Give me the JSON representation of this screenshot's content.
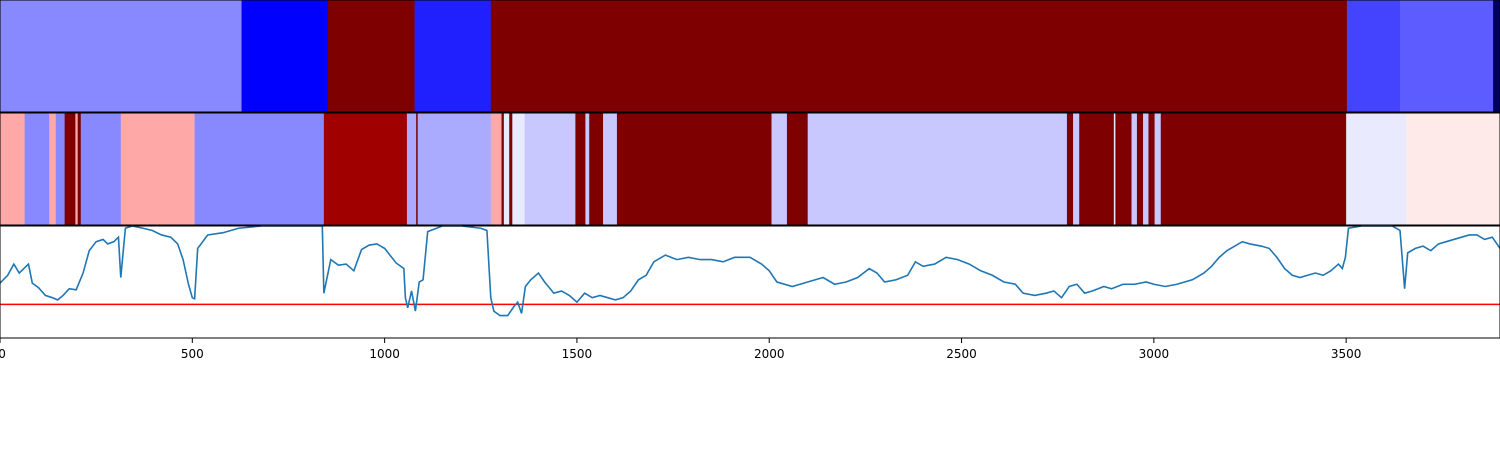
{
  "chart_data": {
    "type": "heatmap",
    "title": "",
    "xlabel": "",
    "ylabel": "",
    "xlim": [
      0,
      3900
    ],
    "xticks": [
      0,
      500,
      1000,
      1500,
      2000,
      2500,
      3000,
      3500
    ],
    "colors": {
      "dark_red": "#7f0000",
      "red": "#a00000",
      "pink": "#ffa8a8",
      "pale_pink": "#ffeaea",
      "blue": "#0000ff",
      "medium_blue": "#2020ff",
      "light_blue": "#8888ff",
      "periwinkle": "#aaaaff",
      "lavender": "#c8c8ff",
      "pale_lavender": "#eaeaff",
      "indigo": "#4444ff",
      "slate_blue": "#5c5cff",
      "navy": "#000060",
      "line": "#1f77b4",
      "threshold": "#ff0000"
    },
    "band1": [
      {
        "start": 0,
        "end": 628,
        "color": "light_blue"
      },
      {
        "start": 628,
        "end": 852,
        "color": "blue"
      },
      {
        "start": 852,
        "end": 1078,
        "color": "dark_red"
      },
      {
        "start": 1078,
        "end": 1276,
        "color": "medium_blue"
      },
      {
        "start": 1276,
        "end": 3502,
        "color": "dark_red"
      },
      {
        "start": 3502,
        "end": 3640,
        "color": "indigo"
      },
      {
        "start": 3640,
        "end": 3882,
        "color": "slate_blue"
      },
      {
        "start": 3882,
        "end": 3900,
        "color": "navy"
      }
    ],
    "band2": [
      {
        "start": 0,
        "end": 64,
        "color": "pink"
      },
      {
        "start": 64,
        "end": 128,
        "color": "light_blue"
      },
      {
        "start": 128,
        "end": 145,
        "color": "pink"
      },
      {
        "start": 145,
        "end": 168,
        "color": "light_blue"
      },
      {
        "start": 168,
        "end": 196,
        "color": "dark_red"
      },
      {
        "start": 196,
        "end": 202,
        "color": "pink"
      },
      {
        "start": 202,
        "end": 210,
        "color": "dark_red"
      },
      {
        "start": 210,
        "end": 314,
        "color": "light_blue"
      },
      {
        "start": 314,
        "end": 506,
        "color": "pink"
      },
      {
        "start": 506,
        "end": 842,
        "color": "light_blue"
      },
      {
        "start": 842,
        "end": 1058,
        "color": "red"
      },
      {
        "start": 1058,
        "end": 1082,
        "color": "periwinkle"
      },
      {
        "start": 1082,
        "end": 1086,
        "color": "dark_red"
      },
      {
        "start": 1086,
        "end": 1276,
        "color": "periwinkle"
      },
      {
        "start": 1276,
        "end": 1304,
        "color": "pink"
      },
      {
        "start": 1304,
        "end": 1310,
        "color": "dark_red"
      },
      {
        "start": 1310,
        "end": 1324,
        "color": "pale_lavender"
      },
      {
        "start": 1324,
        "end": 1332,
        "color": "dark_red"
      },
      {
        "start": 1332,
        "end": 1364,
        "color": "pale_lavender"
      },
      {
        "start": 1364,
        "end": 1496,
        "color": "lavender"
      },
      {
        "start": 1496,
        "end": 1522,
        "color": "dark_red"
      },
      {
        "start": 1522,
        "end": 1532,
        "color": "lavender"
      },
      {
        "start": 1532,
        "end": 1568,
        "color": "dark_red"
      },
      {
        "start": 1568,
        "end": 1604,
        "color": "lavender"
      },
      {
        "start": 1604,
        "end": 2006,
        "color": "dark_red"
      },
      {
        "start": 2006,
        "end": 2046,
        "color": "lavender"
      },
      {
        "start": 2046,
        "end": 2100,
        "color": "dark_red"
      },
      {
        "start": 2100,
        "end": 2774,
        "color": "lavender"
      },
      {
        "start": 2774,
        "end": 2790,
        "color": "dark_red"
      },
      {
        "start": 2790,
        "end": 2806,
        "color": "lavender"
      },
      {
        "start": 2806,
        "end": 2896,
        "color": "dark_red"
      },
      {
        "start": 2896,
        "end": 2900,
        "color": "pale_lavender"
      },
      {
        "start": 2900,
        "end": 2942,
        "color": "dark_red"
      },
      {
        "start": 2942,
        "end": 2956,
        "color": "lavender"
      },
      {
        "start": 2956,
        "end": 2972,
        "color": "dark_red"
      },
      {
        "start": 2972,
        "end": 2986,
        "color": "lavender"
      },
      {
        "start": 2986,
        "end": 3002,
        "color": "dark_red"
      },
      {
        "start": 3002,
        "end": 3018,
        "color": "lavender"
      },
      {
        "start": 3018,
        "end": 3500,
        "color": "dark_red"
      },
      {
        "start": 3500,
        "end": 3656,
        "color": "pale_lavender"
      },
      {
        "start": 3656,
        "end": 3900,
        "color": "pale_pink"
      }
    ],
    "line": {
      "ylim": [
        0,
        1
      ],
      "threshold": 0.3,
      "points": [
        [
          0,
          0.49
        ],
        [
          20,
          0.56
        ],
        [
          36,
          0.66
        ],
        [
          50,
          0.58
        ],
        [
          62,
          0.62
        ],
        [
          74,
          0.66
        ],
        [
          84,
          0.49
        ],
        [
          100,
          0.45
        ],
        [
          118,
          0.38
        ],
        [
          136,
          0.36
        ],
        [
          150,
          0.34
        ],
        [
          164,
          0.38
        ],
        [
          180,
          0.44
        ],
        [
          198,
          0.43
        ],
        [
          216,
          0.58
        ],
        [
          232,
          0.78
        ],
        [
          250,
          0.86
        ],
        [
          268,
          0.88
        ],
        [
          280,
          0.84
        ],
        [
          296,
          0.86
        ],
        [
          308,
          0.9
        ],
        [
          314,
          0.54
        ],
        [
          326,
          0.98
        ],
        [
          344,
          1.0
        ],
        [
          372,
          0.98
        ],
        [
          396,
          0.96
        ],
        [
          420,
          0.92
        ],
        [
          444,
          0.9
        ],
        [
          462,
          0.84
        ],
        [
          476,
          0.7
        ],
        [
          490,
          0.48
        ],
        [
          500,
          0.36
        ],
        [
          506,
          0.35
        ],
        [
          514,
          0.8
        ],
        [
          540,
          0.92
        ],
        [
          580,
          0.94
        ],
        [
          620,
          0.98
        ],
        [
          680,
          1.0
        ],
        [
          760,
          1.0
        ],
        [
          820,
          1.0
        ],
        [
          838,
          1.0
        ],
        [
          842,
          0.4
        ],
        [
          860,
          0.7
        ],
        [
          880,
          0.65
        ],
        [
          900,
          0.66
        ],
        [
          920,
          0.6
        ],
        [
          940,
          0.79
        ],
        [
          960,
          0.83
        ],
        [
          980,
          0.84
        ],
        [
          1000,
          0.8
        ],
        [
          1030,
          0.67
        ],
        [
          1050,
          0.62
        ],
        [
          1054,
          0.36
        ],
        [
          1060,
          0.27
        ],
        [
          1070,
          0.42
        ],
        [
          1080,
          0.24
        ],
        [
          1090,
          0.5
        ],
        [
          1100,
          0.52
        ],
        [
          1112,
          0.95
        ],
        [
          1150,
          1.0
        ],
        [
          1200,
          1.0
        ],
        [
          1250,
          0.98
        ],
        [
          1266,
          0.96
        ],
        [
          1276,
          0.36
        ],
        [
          1284,
          0.24
        ],
        [
          1300,
          0.2
        ],
        [
          1320,
          0.2
        ],
        [
          1336,
          0.28
        ],
        [
          1346,
          0.32
        ],
        [
          1356,
          0.22
        ],
        [
          1366,
          0.46
        ],
        [
          1380,
          0.52
        ],
        [
          1400,
          0.58
        ],
        [
          1416,
          0.5
        ],
        [
          1440,
          0.4
        ],
        [
          1460,
          0.42
        ],
        [
          1480,
          0.38
        ],
        [
          1500,
          0.32
        ],
        [
          1520,
          0.4
        ],
        [
          1540,
          0.36
        ],
        [
          1560,
          0.38
        ],
        [
          1580,
          0.36
        ],
        [
          1600,
          0.34
        ],
        [
          1620,
          0.36
        ],
        [
          1640,
          0.42
        ],
        [
          1660,
          0.52
        ],
        [
          1680,
          0.56
        ],
        [
          1700,
          0.68
        ],
        [
          1730,
          0.74
        ],
        [
          1760,
          0.7
        ],
        [
          1790,
          0.72
        ],
        [
          1820,
          0.7
        ],
        [
          1850,
          0.7
        ],
        [
          1880,
          0.68
        ],
        [
          1910,
          0.72
        ],
        [
          1950,
          0.72
        ],
        [
          1980,
          0.66
        ],
        [
          2000,
          0.6
        ],
        [
          2020,
          0.5
        ],
        [
          2060,
          0.46
        ],
        [
          2100,
          0.5
        ],
        [
          2140,
          0.54
        ],
        [
          2170,
          0.48
        ],
        [
          2200,
          0.5
        ],
        [
          2230,
          0.54
        ],
        [
          2260,
          0.62
        ],
        [
          2280,
          0.58
        ],
        [
          2300,
          0.5
        ],
        [
          2330,
          0.52
        ],
        [
          2360,
          0.56
        ],
        [
          2380,
          0.68
        ],
        [
          2400,
          0.64
        ],
        [
          2430,
          0.66
        ],
        [
          2460,
          0.72
        ],
        [
          2490,
          0.7
        ],
        [
          2520,
          0.66
        ],
        [
          2550,
          0.6
        ],
        [
          2580,
          0.56
        ],
        [
          2610,
          0.5
        ],
        [
          2640,
          0.48
        ],
        [
          2660,
          0.4
        ],
        [
          2690,
          0.38
        ],
        [
          2720,
          0.4
        ],
        [
          2740,
          0.42
        ],
        [
          2760,
          0.36
        ],
        [
          2780,
          0.46
        ],
        [
          2800,
          0.48
        ],
        [
          2820,
          0.4
        ],
        [
          2840,
          0.42
        ],
        [
          2870,
          0.46
        ],
        [
          2890,
          0.44
        ],
        [
          2920,
          0.48
        ],
        [
          2950,
          0.48
        ],
        [
          2980,
          0.5
        ],
        [
          3000,
          0.48
        ],
        [
          3030,
          0.46
        ],
        [
          3060,
          0.48
        ],
        [
          3100,
          0.52
        ],
        [
          3130,
          0.58
        ],
        [
          3150,
          0.64
        ],
        [
          3170,
          0.72
        ],
        [
          3190,
          0.78
        ],
        [
          3210,
          0.82
        ],
        [
          3230,
          0.86
        ],
        [
          3250,
          0.84
        ],
        [
          3280,
          0.82
        ],
        [
          3300,
          0.8
        ],
        [
          3320,
          0.72
        ],
        [
          3340,
          0.62
        ],
        [
          3360,
          0.56
        ],
        [
          3380,
          0.54
        ],
        [
          3400,
          0.56
        ],
        [
          3420,
          0.58
        ],
        [
          3440,
          0.56
        ],
        [
          3460,
          0.6
        ],
        [
          3480,
          0.66
        ],
        [
          3490,
          0.62
        ],
        [
          3498,
          0.72
        ],
        [
          3506,
          0.98
        ],
        [
          3540,
          1.0
        ],
        [
          3580,
          1.0
        ],
        [
          3620,
          1.0
        ],
        [
          3640,
          0.96
        ],
        [
          3652,
          0.44
        ],
        [
          3660,
          0.76
        ],
        [
          3680,
          0.8
        ],
        [
          3700,
          0.82
        ],
        [
          3720,
          0.78
        ],
        [
          3740,
          0.84
        ],
        [
          3760,
          0.86
        ],
        [
          3780,
          0.88
        ],
        [
          3800,
          0.9
        ],
        [
          3820,
          0.92
        ],
        [
          3840,
          0.92
        ],
        [
          3860,
          0.88
        ],
        [
          3880,
          0.9
        ],
        [
          3900,
          0.8
        ]
      ]
    }
  }
}
